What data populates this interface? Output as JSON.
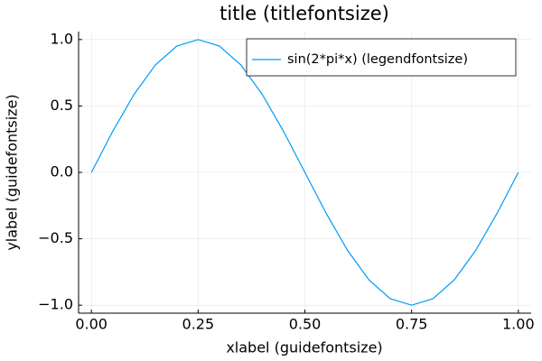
{
  "chart_data": {
    "type": "line",
    "title": "title (titlefontsize)",
    "xlabel": "xlabel (guidefontsize)",
    "ylabel": "ylabel (guidefontsize)",
    "x": [
      0,
      0.05,
      0.1,
      0.15,
      0.2,
      0.25,
      0.3,
      0.35,
      0.4,
      0.45,
      0.5,
      0.55,
      0.6,
      0.65,
      0.7,
      0.75,
      0.8,
      0.85,
      0.9,
      0.95,
      1
    ],
    "series": [
      {
        "name": "sin(2*pi*x) (legendfontsize)",
        "color": "#009af9",
        "values": [
          0,
          0.309,
          0.588,
          0.809,
          0.951,
          1,
          0.951,
          0.809,
          0.588,
          0.309,
          0,
          -0.309,
          -0.588,
          -0.809,
          -0.951,
          -1,
          -0.951,
          -0.809,
          -0.588,
          -0.309,
          0
        ]
      }
    ],
    "xlim": [
      -0.03,
      1.03
    ],
    "ylim": [
      -1.06,
      1.06
    ],
    "xticks": [
      {
        "value": 0,
        "label": "0.00"
      },
      {
        "value": 0.25,
        "label": "0.25"
      },
      {
        "value": 0.5,
        "label": "0.50"
      },
      {
        "value": 0.75,
        "label": "0.75"
      },
      {
        "value": 1,
        "label": "1.00"
      }
    ],
    "yticks": [
      {
        "value": -1,
        "label": "−1.0"
      },
      {
        "value": -0.5,
        "label": "−0.5"
      },
      {
        "value": 0,
        "label": "0.0"
      },
      {
        "value": 0.5,
        "label": "0.5"
      },
      {
        "value": 1,
        "label": "1.0"
      }
    ],
    "grid": true,
    "legend": "top-right"
  }
}
